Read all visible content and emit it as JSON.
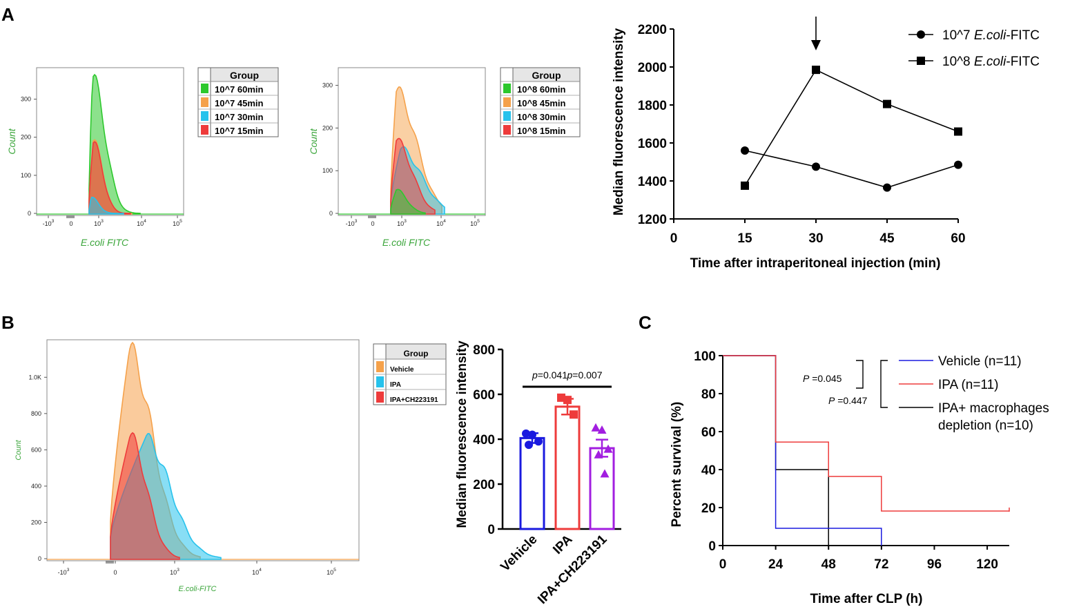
{
  "panel_labels": {
    "a": "A",
    "b": "B",
    "c": "C"
  },
  "colors": {
    "green": "#2dc82d",
    "green_fill": "#7ee35a",
    "orange": "#f5a14a",
    "orange_fill": "#f0a055",
    "cyan": "#27c2ec",
    "red": "#ee3b3b",
    "blue": "#1a1adf",
    "purple": "#a21ee0",
    "black": "#000000",
    "flow_label": "#3aa53a"
  },
  "chart_data": [
    {
      "id": "A1",
      "type": "area",
      "title": "",
      "xlabel": "E.coli FITC",
      "ylabel": "Count",
      "x_tick_labels": [
        "-10",
        "3",
        "0",
        "10",
        "3",
        "10",
        "4",
        "10",
        "5"
      ],
      "x_ticks": [
        {
          "base": "-10",
          "exp": "3"
        },
        {
          "base": "0",
          "exp": ""
        },
        {
          "base": "10",
          "exp": "3"
        },
        {
          "base": "10",
          "exp": "4"
        },
        {
          "base": "10",
          "exp": "5"
        }
      ],
      "y_tick_labels": [
        "0",
        "100",
        "200",
        "300"
      ],
      "ylim": [
        0,
        370
      ],
      "legend_title": "Group",
      "series": [
        {
          "name": "10^7   60min",
          "color": "#2dc82d",
          "peak": 355
        },
        {
          "name": "10^7   45min",
          "color": "#f5a14a",
          "peak": 190
        },
        {
          "name": "10^7   30min",
          "color": "#27c2ec",
          "peak": 42
        },
        {
          "name": "10^7   15min",
          "color": "#ee3b3b",
          "peak": 185
        }
      ]
    },
    {
      "id": "A2",
      "type": "area",
      "title": "",
      "xlabel": "E.coli FITC",
      "ylabel": "Count",
      "x_tick_labels": [
        "-10",
        "3",
        "0",
        "10",
        "3",
        "10",
        "4",
        "10",
        "5"
      ],
      "x_ticks": [
        {
          "base": "-10",
          "exp": "3"
        },
        {
          "base": "0",
          "exp": ""
        },
        {
          "base": "10",
          "exp": "3"
        },
        {
          "base": "10",
          "exp": "4"
        },
        {
          "base": "10",
          "exp": "5"
        }
      ],
      "y_tick_labels": [
        "0",
        "100",
        "200",
        "300"
      ],
      "ylim": [
        0,
        330
      ],
      "legend_title": "Group",
      "series": [
        {
          "name": "10^8   60min",
          "color": "#2dc82d",
          "peak": 55
        },
        {
          "name": "10^8   45min",
          "color": "#f5a14a",
          "peak": 285
        },
        {
          "name": "10^8   30min",
          "color": "#27c2ec",
          "peak": 150
        },
        {
          "name": "10^8   15min",
          "color": "#ee3b3b",
          "peak": 170
        }
      ]
    },
    {
      "id": "A3",
      "type": "line",
      "title": "",
      "xlabel": "Time after intraperitoneal injection (min)",
      "ylabel": "Median fluorescence intensity",
      "x_tick_labels": [
        "0",
        "15",
        "30",
        "45",
        "60"
      ],
      "y_tick_labels": [
        "1200",
        "1400",
        "1600",
        "1800",
        "2000",
        "2200"
      ],
      "xlim": [
        0,
        60
      ],
      "ylim": [
        1200,
        2200
      ],
      "x": [
        15,
        30,
        45,
        60
      ],
      "legend_prefix": [
        "10^7 ",
        "10^8 "
      ],
      "legend_italic": "E.coli",
      "legend_suffix": "-FITC",
      "series": [
        {
          "name": "10^7 E.coli-FITC",
          "marker": "circle",
          "values": [
            1560,
            1475,
            1365,
            1485
          ]
        },
        {
          "name": "10^8 E.coli-FITC",
          "marker": "square",
          "values": [
            1375,
            1985,
            1805,
            1660
          ]
        }
      ],
      "annotation": "arrow at 30 min"
    },
    {
      "id": "B1",
      "type": "area",
      "title": "",
      "xlabel": "E.coli-FITC",
      "ylabel": "Count",
      "x_tick_labels": [
        "-10",
        "3",
        "0",
        "10",
        "3",
        "10",
        "4",
        "10",
        "5"
      ],
      "x_ticks": [
        {
          "base": "-10",
          "exp": "3"
        },
        {
          "base": "0",
          "exp": ""
        },
        {
          "base": "10",
          "exp": "3"
        },
        {
          "base": "10",
          "exp": "4"
        },
        {
          "base": "10",
          "exp": "5"
        }
      ],
      "y_tick_labels": [
        "0",
        "200",
        "400",
        "600",
        "800",
        "1.0K"
      ],
      "ylim": [
        0,
        1180
      ],
      "legend_title": "Group",
      "series": [
        {
          "name": "Vehicle",
          "color": "#f5a14a",
          "peak": 1140
        },
        {
          "name": "IPA",
          "color": "#27c2ec",
          "peak": 660
        },
        {
          "name": "IPA+CH223191",
          "color": "#ee3b3b",
          "peak": 670
        }
      ]
    },
    {
      "id": "B2",
      "type": "bar",
      "title": "",
      "xlabel": "",
      "ylabel": "Median fluorescence intensity",
      "categories": [
        "Vehicle",
        "IPA",
        "IPA+CH223191"
      ],
      "values": [
        405,
        545,
        360
      ],
      "errors": [
        22,
        35,
        38
      ],
      "colors": [
        "#1a1adf",
        "#ee3b3b",
        "#a21ee0"
      ],
      "points": [
        [
          425,
          420,
          390,
          375
        ],
        [
          585,
          575,
          510
        ],
        [
          450,
          440,
          355,
          330,
          245
        ]
      ],
      "y_tick_labels": [
        "0",
        "200",
        "400",
        "600",
        "800"
      ],
      "ylim": [
        0,
        800
      ],
      "annotations": [
        {
          "italic": "p",
          "text": "=0.041",
          "pair": [
            0,
            1
          ]
        },
        {
          "italic": "p",
          "text": "=0.007",
          "pair": [
            1,
            2
          ]
        }
      ]
    },
    {
      "id": "C",
      "type": "line",
      "title": "",
      "xlabel": "Time after CLP (h)",
      "ylabel": "Percent survival (%)",
      "x_tick_labels": [
        "0",
        "24",
        "48",
        "72",
        "96",
        "120"
      ],
      "y_tick_labels": [
        "0",
        "20",
        "40",
        "60",
        "80",
        "100"
      ],
      "xlim": [
        0,
        130
      ],
      "ylim": [
        0,
        100
      ],
      "series": [
        {
          "name": "Vehicle (n=11)",
          "color": "#1a1adf",
          "steps": [
            [
              0,
              100
            ],
            [
              24,
              100
            ],
            [
              24,
              9.1
            ],
            [
              72,
              9.1
            ],
            [
              72,
              0
            ]
          ]
        },
        {
          "name": "IPA (n=11)",
          "color": "#ee3b3b",
          "steps": [
            [
              0,
              100
            ],
            [
              24,
              100
            ],
            [
              24,
              54.5
            ],
            [
              48,
              54.5
            ],
            [
              48,
              36.4
            ],
            [
              72,
              36.4
            ],
            [
              72,
              18.2
            ],
            [
              130,
              18.2
            ]
          ]
        },
        {
          "name": "IPA+ macrophages depletion (n=10)",
          "color": "#000000",
          "steps": [
            [
              0,
              100
            ],
            [
              24,
              100
            ],
            [
              24,
              40
            ],
            [
              48,
              40
            ],
            [
              48,
              0
            ]
          ]
        }
      ],
      "legend_lines": [
        [
          "Vehicle (n=11)"
        ],
        [
          "IPA (n=11)"
        ],
        [
          "IPA+ macrophages",
          "depletion (n=10)"
        ]
      ],
      "stats": [
        {
          "label": "P",
          "text": "=0.045"
        },
        {
          "label": "P",
          "text": "=0.447"
        }
      ]
    }
  ]
}
